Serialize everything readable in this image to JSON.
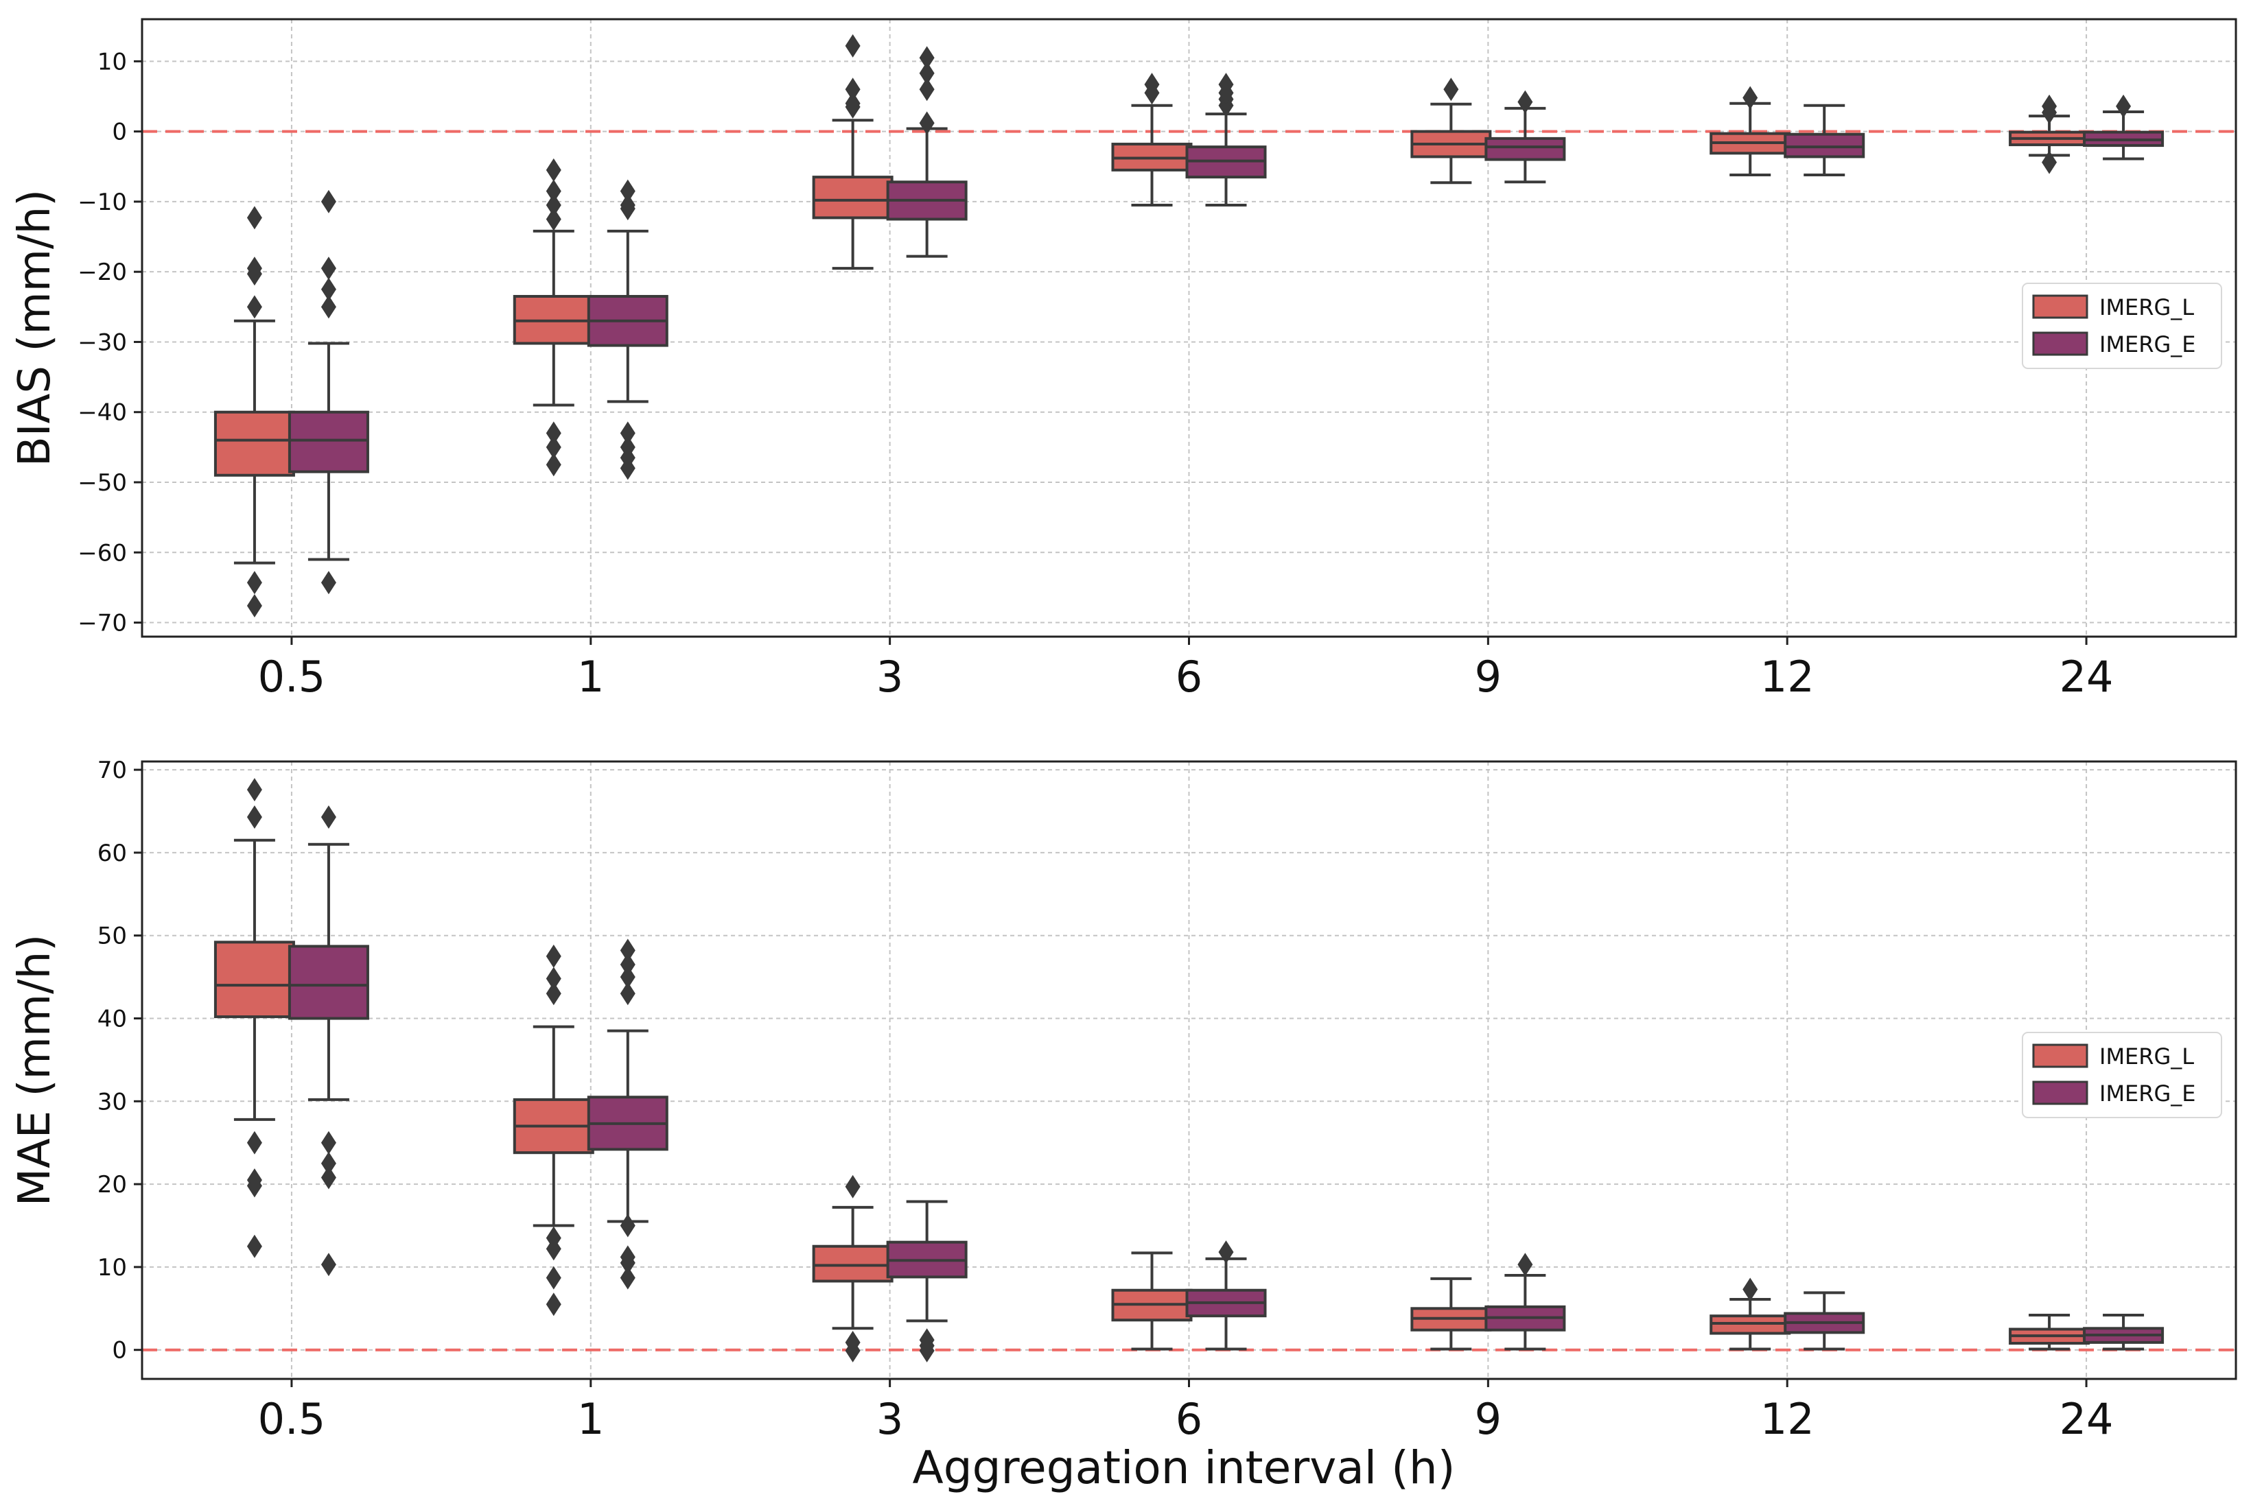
{
  "figure": {
    "xlabel": "Aggregation interval (h)"
  },
  "chart_data": [
    {
      "type": "box",
      "ylabel": "BIAS (mm/h)",
      "ylim": [
        -72,
        16
      ],
      "yticks": [
        10,
        0,
        -10,
        -20,
        -30,
        -40,
        -50,
        -60,
        -70
      ],
      "yticklabels": [
        "10",
        "0",
        "−10",
        "−20",
        "−30",
        "−40",
        "−50",
        "−60",
        "−70"
      ],
      "categories": [
        "0.5",
        "1",
        "3",
        "6",
        "9",
        "12",
        "24"
      ],
      "reference_line": 0,
      "grid": true,
      "legend_position": "right",
      "series": [
        {
          "name": "IMERG_L",
          "color": "#d6645f",
          "boxes": [
            {
              "q1": -49,
              "median": -44,
              "q3": -40,
              "whislo": -61.5,
              "whishi": -27,
              "fliers": [
                -12.3,
                -19.5,
                -20.3,
                -25,
                -64.3,
                -67.6
              ]
            },
            {
              "q1": -30.2,
              "median": -27,
              "q3": -23.5,
              "whislo": -39,
              "whishi": -14.2,
              "fliers": [
                -5.5,
                -8.5,
                -10.5,
                -12.5,
                -43,
                -45,
                -47.5
              ]
            },
            {
              "q1": -12.3,
              "median": -9.8,
              "q3": -6.5,
              "whislo": -19.5,
              "whishi": 1.6,
              "fliers": [
                3.5,
                4,
                6,
                12.2
              ]
            },
            {
              "q1": -5.5,
              "median": -3.8,
              "q3": -1.8,
              "whislo": -10.5,
              "whishi": 3.7,
              "fliers": [
                5.5,
                6.7
              ]
            },
            {
              "q1": -3.6,
              "median": -1.8,
              "q3": 0,
              "whislo": -7.3,
              "whishi": 3.9,
              "fliers": [
                6
              ]
            },
            {
              "q1": -3.1,
              "median": -1.6,
              "q3": -0.3,
              "whislo": -6.2,
              "whishi": 4,
              "fliers": [
                4.8
              ]
            },
            {
              "q1": -1.9,
              "median": -1,
              "q3": -0.1,
              "whislo": -3.4,
              "whishi": 2.2,
              "fliers": [
                -4.4,
                2.7,
                3.6
              ]
            }
          ]
        },
        {
          "name": "IMERG_E",
          "color": "#8a3a6c",
          "boxes": [
            {
              "q1": -48.5,
              "median": -44,
              "q3": -40,
              "whislo": -61,
              "whishi": -30.2,
              "fliers": [
                -10,
                -19.5,
                -22.5,
                -25,
                -64.3
              ]
            },
            {
              "q1": -30.5,
              "median": -27,
              "q3": -23.5,
              "whislo": -38.5,
              "whishi": -14.2,
              "fliers": [
                -8.5,
                -10.5,
                -11,
                -43,
                -45,
                -46.5,
                -48
              ]
            },
            {
              "q1": -12.5,
              "median": -9.8,
              "q3": -7.2,
              "whislo": -17.8,
              "whishi": 0.4,
              "fliers": [
                1.2,
                6,
                8.3,
                10.5
              ]
            },
            {
              "q1": -6.5,
              "median": -4.2,
              "q3": -2.2,
              "whislo": -10.5,
              "whishi": 2.5,
              "fliers": [
                3.7,
                4.6,
                5.5,
                6.7
              ]
            },
            {
              "q1": -4,
              "median": -2.2,
              "q3": -1,
              "whislo": -7.2,
              "whishi": 3.3,
              "fliers": [
                4.2
              ]
            },
            {
              "q1": -3.6,
              "median": -2.2,
              "q3": -0.4,
              "whislo": -6.2,
              "whishi": 3.7,
              "fliers": []
            },
            {
              "q1": -2,
              "median": -1.2,
              "q3": -0.1,
              "whislo": -3.9,
              "whishi": 2.8,
              "fliers": [
                3.6
              ]
            }
          ]
        }
      ]
    },
    {
      "type": "box",
      "ylabel": "MAE (mm/h)",
      "ylim": [
        -3.5,
        71
      ],
      "yticks": [
        70,
        60,
        50,
        40,
        30,
        20,
        10,
        0
      ],
      "yticklabels": [
        "70",
        "60",
        "50",
        "40",
        "30",
        "20",
        "10",
        "0"
      ],
      "categories": [
        "0.5",
        "1",
        "3",
        "6",
        "9",
        "12",
        "24"
      ],
      "reference_line": 0,
      "grid": true,
      "legend_position": "right",
      "series": [
        {
          "name": "IMERG_L",
          "color": "#d6645f",
          "boxes": [
            {
              "q1": 40.2,
              "median": 44,
              "q3": 49.2,
              "whislo": 27.8,
              "whishi": 61.5,
              "fliers": [
                12.5,
                19.8,
                20.5,
                25,
                64.3,
                67.6
              ]
            },
            {
              "q1": 23.8,
              "median": 27,
              "q3": 30.2,
              "whislo": 15,
              "whishi": 39,
              "fliers": [
                5.5,
                8.7,
                12.2,
                13.5,
                43,
                44.8,
                47.5
              ]
            },
            {
              "q1": 8.3,
              "median": 10.2,
              "q3": 12.5,
              "whislo": 2.6,
              "whishi": 17.2,
              "fliers": [
                -0.1,
                0.9,
                19.7
              ]
            },
            {
              "q1": 3.6,
              "median": 5.5,
              "q3": 7.2,
              "whislo": 0.1,
              "whishi": 11.7,
              "fliers": []
            },
            {
              "q1": 2.4,
              "median": 3.8,
              "q3": 5,
              "whislo": 0.1,
              "whishi": 8.6,
              "fliers": []
            },
            {
              "q1": 2,
              "median": 3.2,
              "q3": 4.1,
              "whislo": 0.1,
              "whishi": 6.1,
              "fliers": [
                7.3
              ]
            },
            {
              "q1": 0.8,
              "median": 1.7,
              "q3": 2.5,
              "whislo": 0.1,
              "whishi": 4.2,
              "fliers": []
            }
          ]
        },
        {
          "name": "IMERG_E",
          "color": "#8a3a6c",
          "boxes": [
            {
              "q1": 40,
              "median": 44,
              "q3": 48.7,
              "whislo": 30.2,
              "whishi": 61,
              "fliers": [
                10.3,
                20.8,
                22.5,
                25,
                64.3
              ]
            },
            {
              "q1": 24.2,
              "median": 27.3,
              "q3": 30.5,
              "whislo": 15.5,
              "whishi": 38.5,
              "fliers": [
                8.7,
                10.5,
                11.2,
                15,
                43,
                45,
                46.5,
                48.2
              ]
            },
            {
              "q1": 8.8,
              "median": 10.8,
              "q3": 13,
              "whislo": 3.5,
              "whishi": 17.9,
              "fliers": [
                -0.1,
                0.5,
                1.2
              ]
            },
            {
              "q1": 4.1,
              "median": 5.7,
              "q3": 7.2,
              "whislo": 0.1,
              "whishi": 11,
              "fliers": [
                11.8
              ]
            },
            {
              "q1": 2.4,
              "median": 3.9,
              "q3": 5.2,
              "whislo": 0.1,
              "whishi": 9,
              "fliers": [
                10.3
              ]
            },
            {
              "q1": 2.1,
              "median": 3.3,
              "q3": 4.4,
              "whislo": 0.1,
              "whishi": 6.9,
              "fliers": []
            },
            {
              "q1": 0.9,
              "median": 1.8,
              "q3": 2.6,
              "whislo": 0.1,
              "whishi": 4.2,
              "fliers": []
            }
          ]
        }
      ]
    }
  ]
}
